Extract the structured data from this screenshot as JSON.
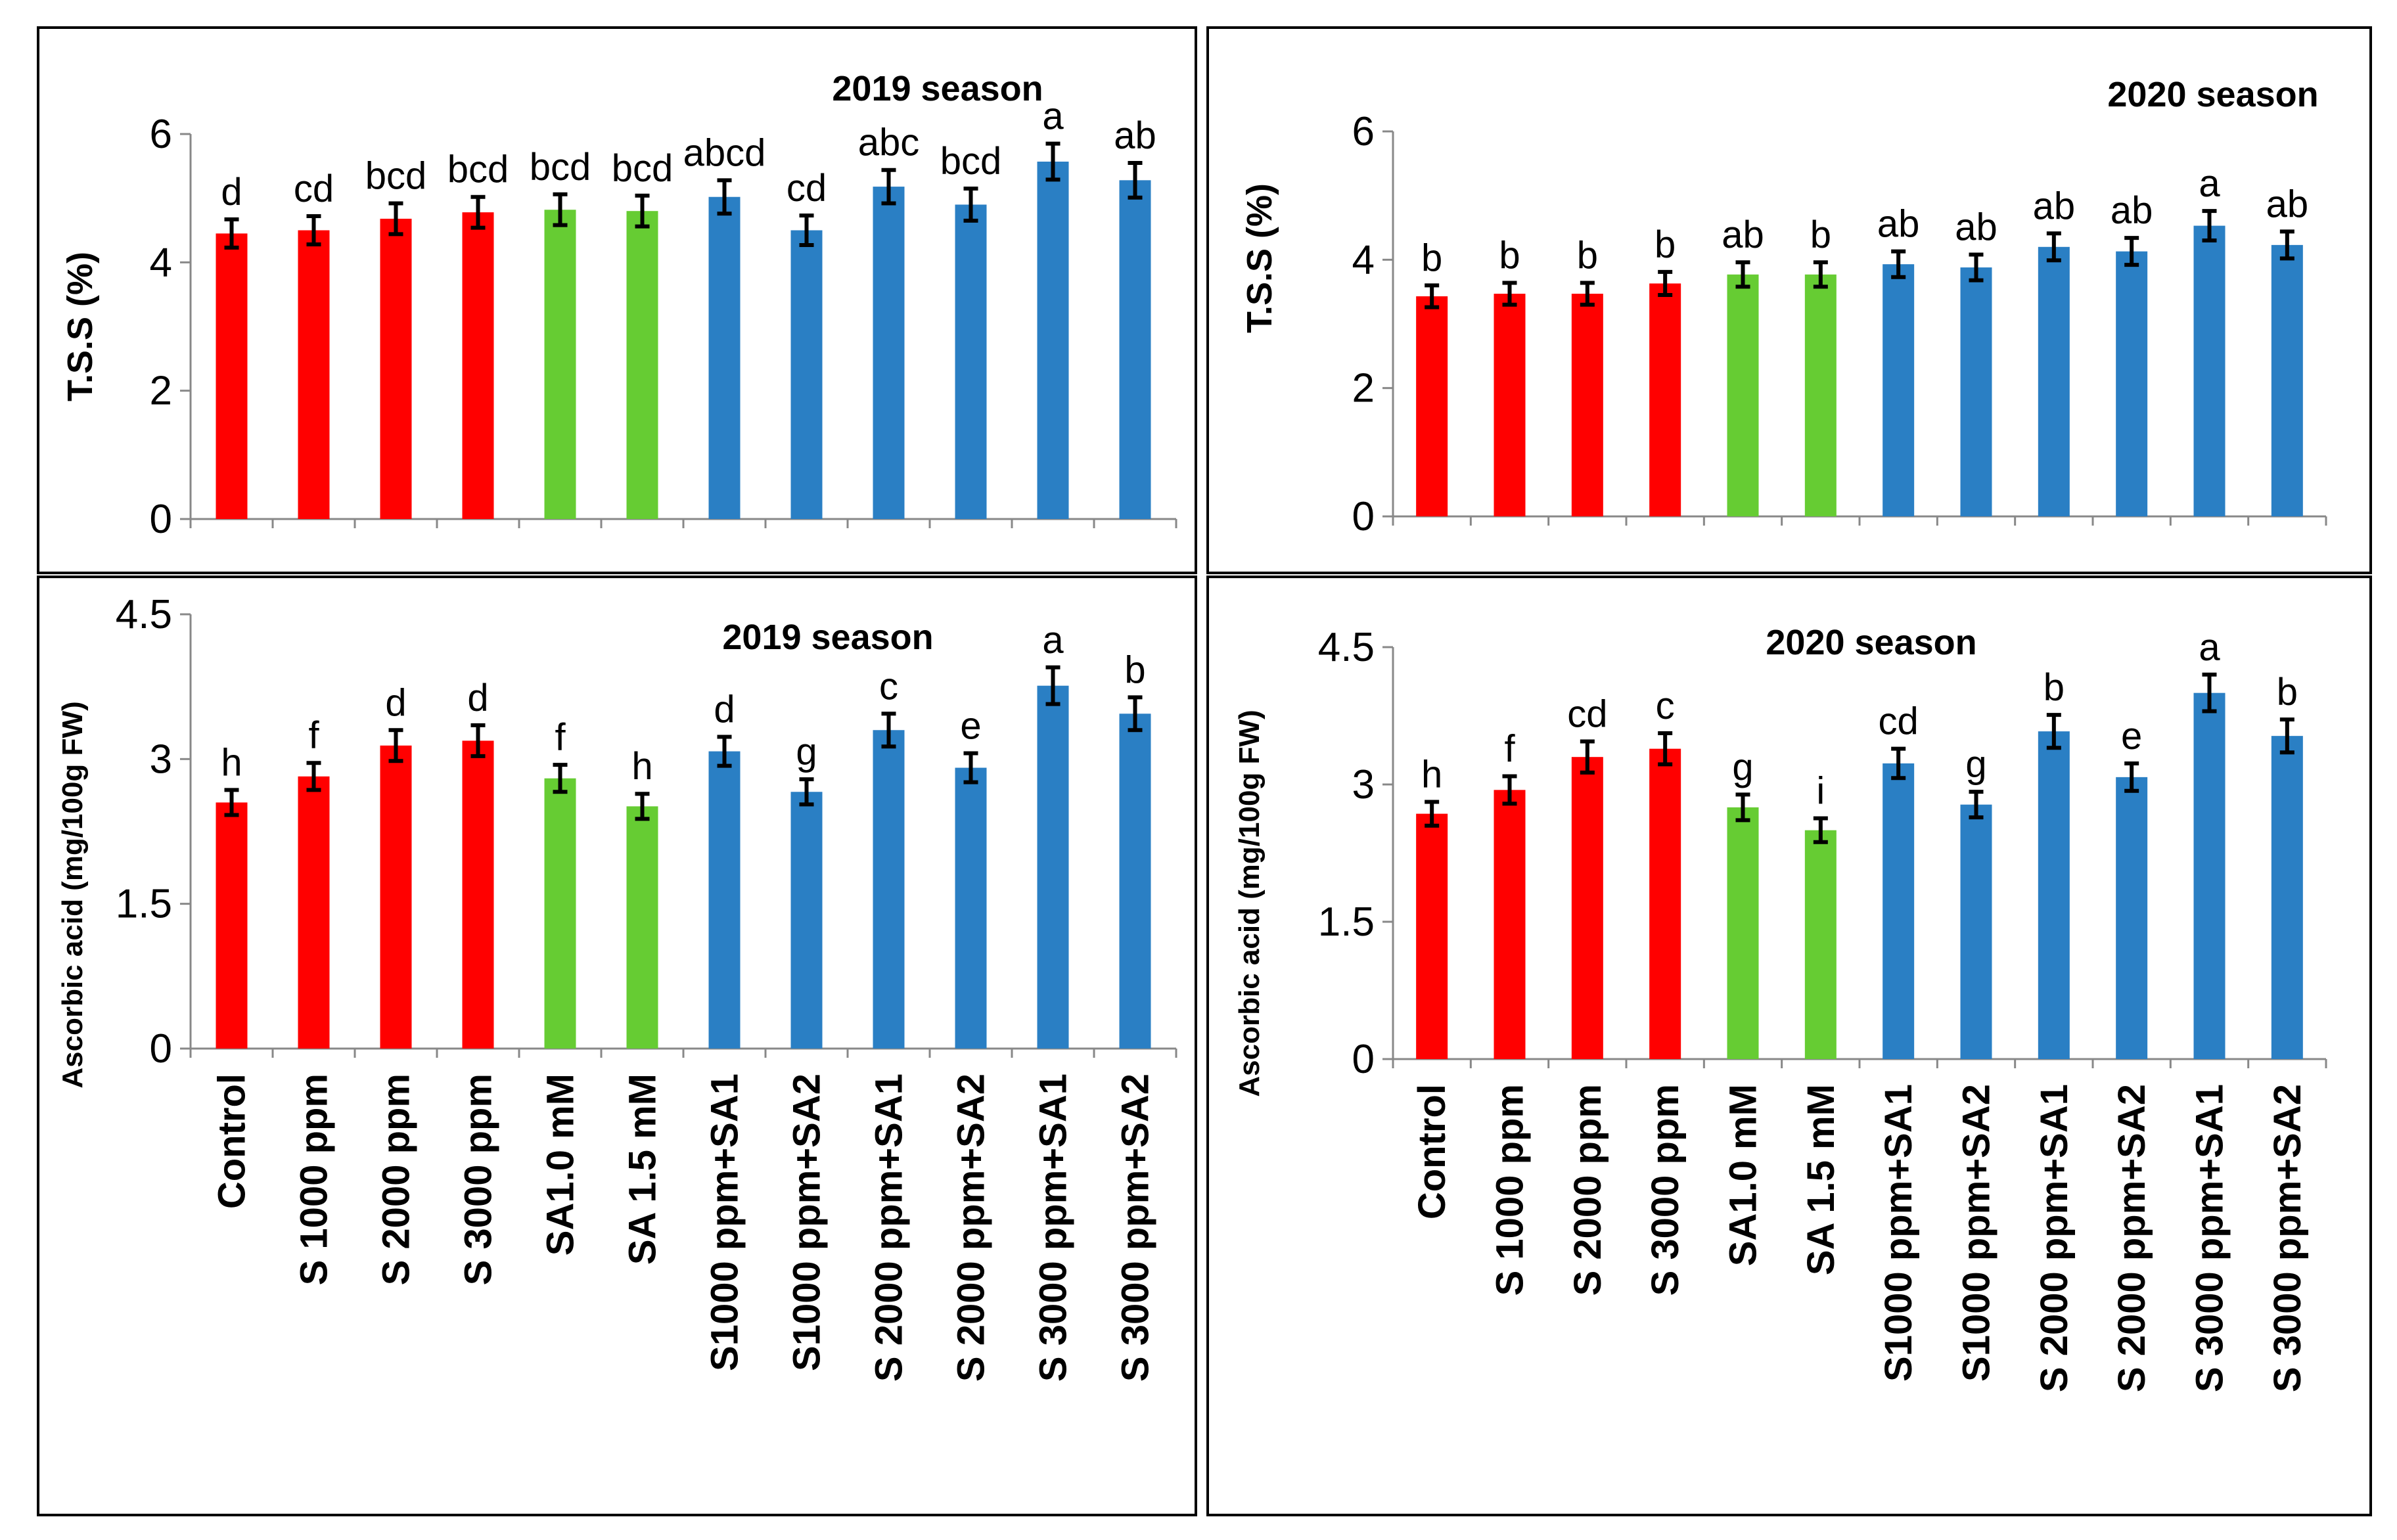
{
  "colors": {
    "sulfur": "#ff0000",
    "salicylic": "#66cc33",
    "combined": "#2a7fc4"
  },
  "chart_data": [
    {
      "type": "bar",
      "title": "2019 season",
      "ylabel": "T.S.S (%)",
      "ylim": [
        0,
        6
      ],
      "yticks": [
        "0",
        "2",
        "4",
        "6"
      ],
      "categories": [
        "Control",
        "S 1000 ppm",
        "S 2000 ppm",
        "S 3000 ppm",
        "SA1.0 mM",
        "SA 1.5 mM",
        "S1000 ppm+SA1",
        "S1000 ppm+SA2",
        "S 2000 ppm+SA1",
        "S 2000 ppm+SA2",
        "S 3000 ppm+SA1",
        "S 3000 ppm+SA2"
      ],
      "values": [
        4.45,
        4.5,
        4.68,
        4.78,
        4.82,
        4.8,
        5.02,
        4.5,
        5.18,
        4.9,
        5.57,
        5.28
      ],
      "errors": [
        0.22,
        0.22,
        0.24,
        0.24,
        0.24,
        0.24,
        0.26,
        0.23,
        0.26,
        0.25,
        0.28,
        0.27
      ],
      "letters": [
        "d",
        "cd",
        "bcd",
        "bcd",
        "bcd",
        "bcd",
        "abcd",
        "cd",
        "abc",
        "bcd",
        "a",
        "ab"
      ],
      "groups": [
        "sulfur",
        "sulfur",
        "sulfur",
        "sulfur",
        "salicylic",
        "salicylic",
        "combined",
        "combined",
        "combined",
        "combined",
        "combined",
        "combined"
      ]
    },
    {
      "type": "bar",
      "title": "2020 season",
      "ylabel": "T.S.S (%)",
      "ylim": [
        0,
        6
      ],
      "yticks": [
        "0",
        "2",
        "4",
        "6"
      ],
      "categories": [
        "Control",
        "S 1000 ppm",
        "S 2000 ppm",
        "S 3000 ppm",
        "SA1.0 mM",
        "SA 1.5 mM",
        "S1000 ppm+SA1",
        "S1000 ppm+SA2",
        "S 2000 ppm+SA1",
        "S 2000 ppm+SA2",
        "S 3000 ppm+SA1",
        "S 3000 ppm+SA2"
      ],
      "values": [
        3.43,
        3.47,
        3.47,
        3.63,
        3.77,
        3.77,
        3.93,
        3.88,
        4.2,
        4.13,
        4.53,
        4.23
      ],
      "errors": [
        0.17,
        0.17,
        0.17,
        0.18,
        0.19,
        0.19,
        0.2,
        0.2,
        0.21,
        0.21,
        0.23,
        0.21
      ],
      "letters": [
        "b",
        "b",
        "b",
        "b",
        "ab",
        "b",
        "ab",
        "ab",
        "ab",
        "ab",
        "a",
        "ab"
      ],
      "groups": [
        "sulfur",
        "sulfur",
        "sulfur",
        "sulfur",
        "salicylic",
        "salicylic",
        "combined",
        "combined",
        "combined",
        "combined",
        "combined",
        "combined"
      ]
    },
    {
      "type": "bar",
      "title": "2019 season",
      "ylabel": "Ascorbic acid  (mg/100g FW)",
      "ylim": [
        0,
        4.5
      ],
      "yticks": [
        "0",
        "1.5",
        "3",
        "4.5"
      ],
      "categories": [
        "Control",
        "S 1000 ppm",
        "S 2000 ppm",
        "S 3000 ppm",
        "SA1.0 mM",
        "SA 1.5 mM",
        "S1000 ppm+SA1",
        "S1000 ppm+SA2",
        "S 2000 ppm+SA1",
        "S 2000 ppm+SA2",
        "S 3000 ppm+SA1",
        "S 3000 ppm+SA2"
      ],
      "values": [
        2.55,
        2.82,
        3.14,
        3.19,
        2.8,
        2.51,
        3.08,
        2.66,
        3.3,
        2.91,
        3.76,
        3.47
      ],
      "errors": [
        0.13,
        0.14,
        0.16,
        0.16,
        0.14,
        0.13,
        0.15,
        0.13,
        0.17,
        0.15,
        0.19,
        0.17
      ],
      "letters": [
        "h",
        "f",
        "d",
        "d",
        "f",
        "h",
        "d",
        "g",
        "c",
        "e",
        "a",
        "b"
      ],
      "groups": [
        "sulfur",
        "sulfur",
        "sulfur",
        "sulfur",
        "salicylic",
        "salicylic",
        "combined",
        "combined",
        "combined",
        "combined",
        "combined",
        "combined"
      ]
    },
    {
      "type": "bar",
      "title": "2020 season",
      "ylabel": "Ascorbic acid  (mg/100g FW)",
      "ylim": [
        0,
        4.5
      ],
      "yticks": [
        "0",
        "1.5",
        "3",
        "4.5"
      ],
      "categories": [
        "Control",
        "S 1000 ppm",
        "S 2000 ppm",
        "S 3000 ppm",
        "SA1.0 mM",
        "SA 1.5 mM",
        "S1000 ppm+SA1",
        "S1000 ppm+SA2",
        "S 2000 ppm+SA1",
        "S 2000 ppm+SA2",
        "S 3000 ppm+SA1",
        "S 3000 ppm+SA2"
      ],
      "values": [
        2.68,
        2.94,
        3.3,
        3.39,
        2.75,
        2.5,
        3.23,
        2.78,
        3.58,
        3.08,
        4.0,
        3.53
      ],
      "errors": [
        0.13,
        0.15,
        0.17,
        0.17,
        0.14,
        0.13,
        0.16,
        0.14,
        0.18,
        0.15,
        0.2,
        0.18
      ],
      "letters": [
        "h",
        "f",
        "cd",
        "c",
        "g",
        "i",
        "cd",
        "g",
        "b",
        "e",
        "a",
        "b"
      ],
      "groups": [
        "sulfur",
        "sulfur",
        "sulfur",
        "sulfur",
        "salicylic",
        "salicylic",
        "combined",
        "combined",
        "combined",
        "combined",
        "combined",
        "combined"
      ]
    }
  ]
}
